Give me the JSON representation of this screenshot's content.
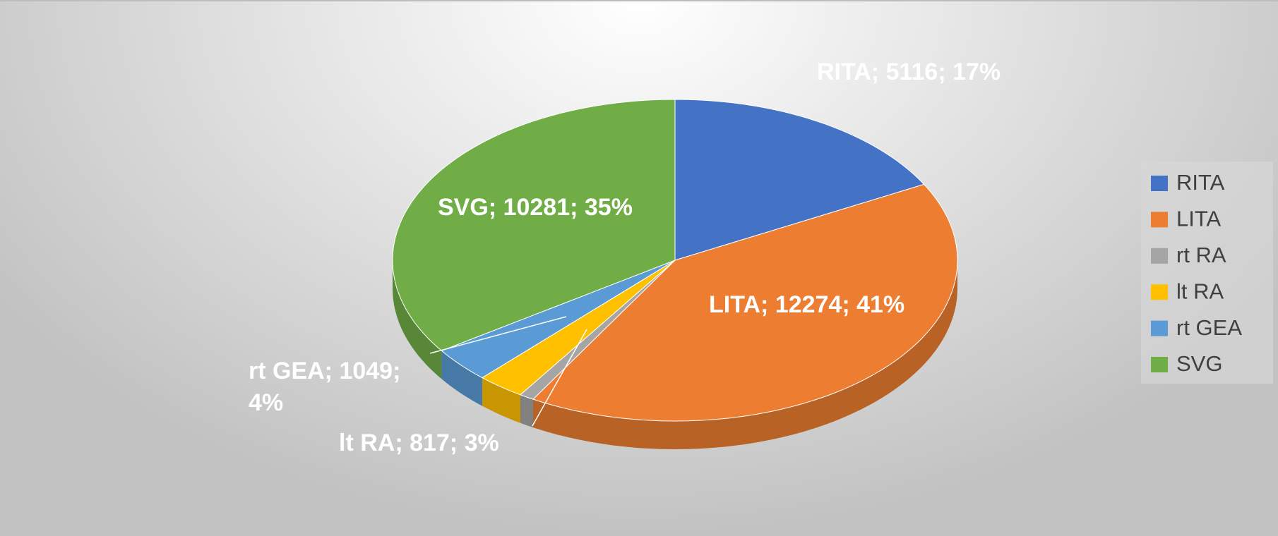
{
  "chart_data": {
    "type": "pie",
    "categories": [
      "RITA",
      "LITA",
      "rt RA",
      "lt RA",
      "rt GEA",
      "SVG"
    ],
    "values": [
      5116,
      12274,
      250,
      817,
      1049,
      10281
    ],
    "value_labels": [
      "RITA; 5116; 17%",
      "LITA; 12274; 41%",
      null,
      "lt RA; 817; 3%",
      "rt GEA; 1049; 4%",
      "SVG; 10281; 35%"
    ],
    "colors": [
      "#4472c4",
      "#ed7d31",
      "#a5a5a5",
      "#ffc000",
      "#5b9bd5",
      "#70ad47"
    ],
    "legend": "right"
  }
}
